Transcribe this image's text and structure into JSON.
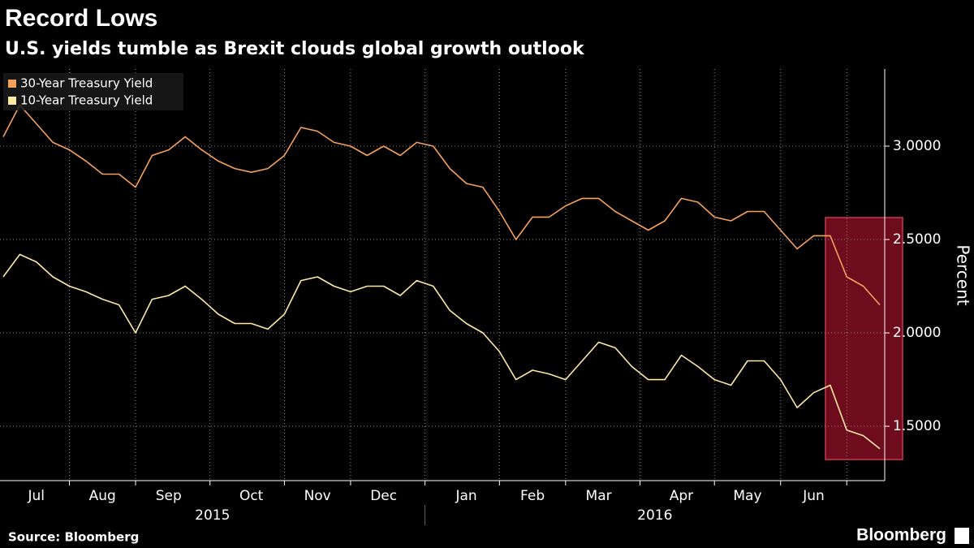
{
  "chart_data": {
    "type": "line",
    "title": "Record Lows",
    "subtitle": "U.S. yields tumble as Brexit clouds global growth outlook",
    "y_label": "Percent",
    "source": "Source: Bloomberg",
    "brand": "Bloomberg",
    "years": [
      "2015",
      "2016"
    ],
    "categories": [
      null,
      null,
      "Jul",
      null,
      null,
      null,
      "Aug",
      null,
      null,
      null,
      "Sep",
      null,
      null,
      null,
      null,
      "Oct",
      null,
      null,
      null,
      "Nov",
      null,
      null,
      null,
      "Dec",
      null,
      null,
      null,
      null,
      "Jan",
      null,
      null,
      null,
      "Feb",
      null,
      null,
      null,
      "Mar",
      null,
      null,
      null,
      null,
      "Apr",
      null,
      null,
      null,
      "May",
      null,
      null,
      null,
      "Jun",
      null,
      null,
      null,
      null
    ],
    "series": [
      {
        "name": "30-Year Treasury Yield",
        "color": "#f5a15b",
        "values": [
          3.05,
          3.22,
          3.12,
          3.02,
          2.98,
          2.92,
          2.85,
          2.85,
          2.78,
          2.95,
          2.98,
          3.05,
          2.98,
          2.92,
          2.88,
          2.86,
          2.88,
          2.95,
          3.1,
          3.08,
          3.02,
          3.0,
          2.95,
          3.0,
          2.95,
          3.02,
          3.0,
          2.88,
          2.8,
          2.78,
          2.65,
          2.5,
          2.62,
          2.62,
          2.68,
          2.72,
          2.72,
          2.65,
          2.6,
          2.55,
          2.6,
          2.72,
          2.7,
          2.62,
          2.6,
          2.65,
          2.65,
          2.55,
          2.45,
          2.52,
          2.52,
          2.3,
          2.25,
          2.15
        ]
      },
      {
        "name": "10-Year Treasury Yield",
        "color": "#fbeaa6",
        "values": [
          2.3,
          2.42,
          2.38,
          2.3,
          2.25,
          2.22,
          2.18,
          2.15,
          2.0,
          2.18,
          2.2,
          2.25,
          2.18,
          2.1,
          2.05,
          2.05,
          2.02,
          2.1,
          2.28,
          2.3,
          2.25,
          2.22,
          2.25,
          2.25,
          2.2,
          2.28,
          2.25,
          2.12,
          2.05,
          2.0,
          1.9,
          1.75,
          1.8,
          1.78,
          1.75,
          1.85,
          1.95,
          1.92,
          1.82,
          1.75,
          1.75,
          1.88,
          1.82,
          1.75,
          1.72,
          1.85,
          1.85,
          1.75,
          1.6,
          1.68,
          1.72,
          1.48,
          1.45,
          1.38
        ]
      }
    ],
    "ylim": [
      1.209,
      3.413
    ],
    "yticks": [
      {
        "value": 1.5,
        "label": "1.5000"
      },
      {
        "value": 2,
        "label": "2.0000"
      },
      {
        "value": 2.5,
        "label": "2.5000"
      },
      {
        "value": 3,
        "label": "3.0000"
      }
    ],
    "grid": true
  }
}
